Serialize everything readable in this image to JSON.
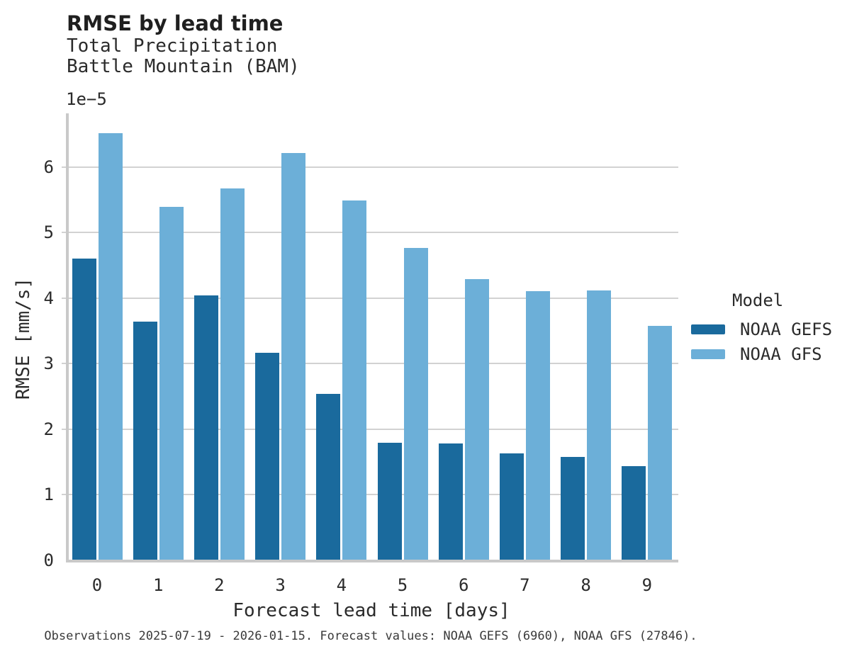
{
  "chart_data": {
    "type": "bar",
    "title": "RMSE by lead time",
    "subtitle_lines": [
      "Total Precipitation",
      "Battle Mountain (BAM)"
    ],
    "y_offset_label": "1e−5",
    "xlabel": "Forecast lead time [days]",
    "ylabel": "RMSE [mm/s]",
    "legend_title": "Model",
    "legend_position": "right",
    "grid": true,
    "categories": [
      "0",
      "1",
      "2",
      "3",
      "4",
      "5",
      "6",
      "7",
      "8",
      "9"
    ],
    "y_ticks": [
      0,
      1,
      2,
      3,
      4,
      5,
      6
    ],
    "ylim": [
      0,
      6.82
    ],
    "y_scale_factor": "1e-5",
    "series": [
      {
        "name": "NOAA GEFS",
        "color": "#1A6A9D",
        "values": [
          4.6,
          3.64,
          4.04,
          3.17,
          2.54,
          1.79,
          1.78,
          1.63,
          1.58,
          1.44
        ]
      },
      {
        "name": "NOAA GFS",
        "color": "#6CAFD8",
        "values": [
          6.52,
          5.39,
          5.67,
          6.22,
          5.49,
          4.77,
          4.29,
          4.11,
          4.12,
          3.58
        ]
      }
    ],
    "footnote": "Observations 2025-07-19 - 2026-01-15. Forecast values: NOAA GEFS (6960), NOAA GFS (27846)."
  }
}
